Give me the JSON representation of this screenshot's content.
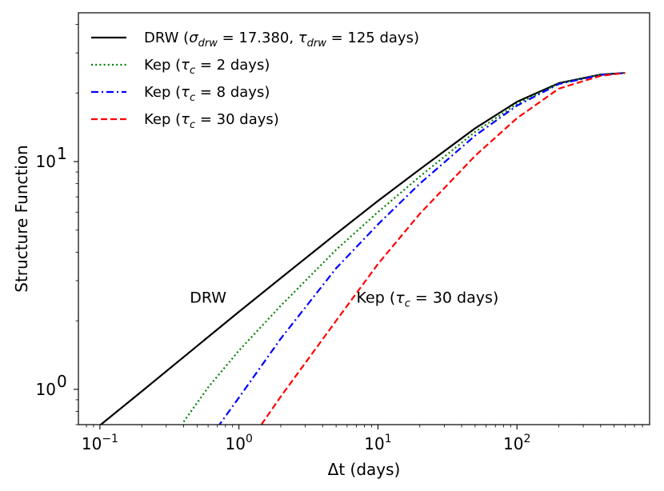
{
  "chart_data": {
    "type": "line",
    "xscale": "log",
    "yscale": "log",
    "xlabel": "Δt (days)",
    "ylabel": "Structure Function",
    "xlim": [
      0.07,
      900
    ],
    "ylim": [
      0.7,
      45
    ],
    "x_ticks": [
      {
        "value": 0.1,
        "base": "10",
        "exp": "−1"
      },
      {
        "value": 1,
        "base": "10",
        "exp": "0"
      },
      {
        "value": 10,
        "base": "10",
        "exp": "1"
      },
      {
        "value": 100,
        "base": "10",
        "exp": "2"
      }
    ],
    "y_ticks": [
      {
        "value": 1,
        "base": "10",
        "exp": "0"
      },
      {
        "value": 10,
        "base": "10",
        "exp": "1"
      }
    ],
    "series": [
      {
        "name": "DRW (σ_drw = 17.380, τ_drw = 125 days)",
        "legend_parts": {
          "pre": "DRW (",
          "s1": "σ",
          "sub1": "drw",
          "mid": " = 17.380, ",
          "s2": "τ",
          "sub2": "drw",
          "post": " = 125 days)"
        },
        "color": "#000000",
        "style": "solid",
        "x": [
          0.1,
          0.2,
          0.5,
          1,
          2,
          5,
          10,
          20,
          50,
          100,
          200,
          400,
          600
        ],
        "y": [
          0.695,
          0.98,
          1.55,
          2.19,
          3.08,
          4.82,
          6.72,
          9.25,
          14.0,
          18.3,
          22.1,
          24.1,
          24.5
        ]
      },
      {
        "name": "Kep (τ_c = 2 days)",
        "legend_parts": {
          "pre": "Kep (",
          "s1": "τ",
          "sub1": "c",
          "post": " = 2 days)"
        },
        "color": "#008000",
        "style": "dotted",
        "x": [
          0.4,
          0.6,
          1,
          2,
          5,
          10,
          20,
          50,
          100,
          200,
          400,
          600
        ],
        "y": [
          0.72,
          1.02,
          1.48,
          2.33,
          4.1,
          6.0,
          8.6,
          13.5,
          17.9,
          22.0,
          24.1,
          24.5
        ]
      },
      {
        "name": "Kep (τ_c = 8 days)",
        "legend_parts": {
          "pre": "Kep (",
          "s1": "τ",
          "sub1": "c",
          "post": " = 8 days)"
        },
        "color": "#0000ff",
        "style": "dashdot",
        "x": [
          0.7,
          1,
          2,
          5,
          10,
          20,
          50,
          100,
          200,
          400,
          600
        ],
        "y": [
          0.68,
          0.92,
          1.67,
          3.4,
          5.3,
          8.0,
          13.0,
          17.6,
          21.9,
          24.0,
          24.5
        ]
      },
      {
        "name": "Kep (τ_c = 30 days)",
        "legend_parts": {
          "pre": "Kep (",
          "s1": "τ",
          "sub1": "c",
          "post": " = 30 days)"
        },
        "color": "#ff0000",
        "style": "dashed",
        "x": [
          1.45,
          2,
          5,
          10,
          20,
          50,
          100,
          200,
          400,
          600
        ],
        "y": [
          0.7,
          0.93,
          2.0,
          3.55,
          5.9,
          10.6,
          15.5,
          20.9,
          23.8,
          24.5
        ]
      }
    ],
    "annotations": [
      {
        "text": "DRW",
        "x": 0.6,
        "y": 2.4
      },
      {
        "text": "Kep (τ_c = 30 days)",
        "parts": {
          "pre": "Kep (",
          "s1": "τ",
          "sub1": "c",
          "post": " = 30 days)"
        },
        "x": 7,
        "y": 2.4
      }
    ]
  }
}
